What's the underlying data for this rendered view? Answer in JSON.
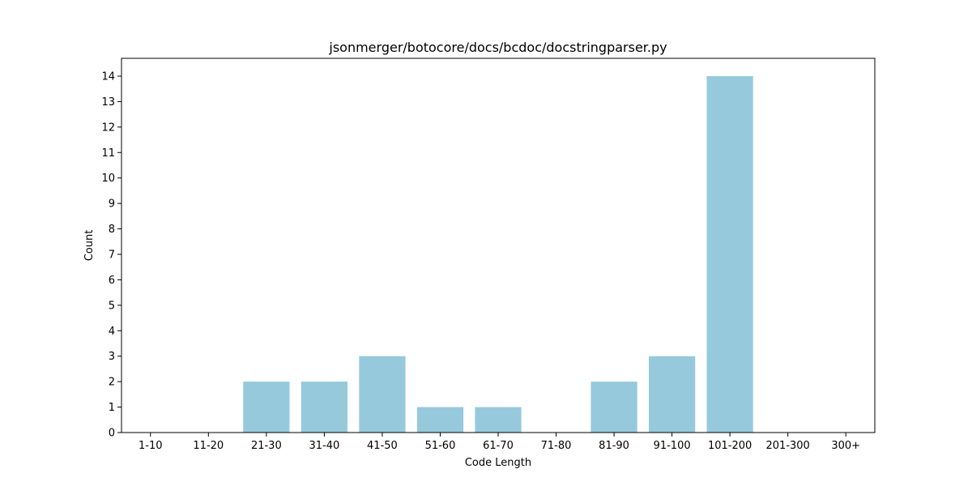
{
  "chart_data": {
    "type": "bar",
    "title": "jsonmerger/botocore/docs/bcdoc/docstringparser.py",
    "xlabel": "Code Length",
    "ylabel": "Count",
    "categories": [
      "1-10",
      "11-20",
      "21-30",
      "31-40",
      "41-50",
      "51-60",
      "61-70",
      "71-80",
      "81-90",
      "91-100",
      "101-200",
      "201-300",
      "300+"
    ],
    "values": [
      0,
      0,
      2,
      2,
      3,
      1,
      1,
      0,
      2,
      3,
      14,
      0,
      0
    ],
    "ylim": [
      0,
      14.7
    ],
    "yticks": [
      0,
      1,
      2,
      3,
      4,
      5,
      6,
      7,
      8,
      9,
      10,
      11,
      12,
      13,
      14
    ],
    "grid": false,
    "bar_color": "#96c9dc"
  }
}
